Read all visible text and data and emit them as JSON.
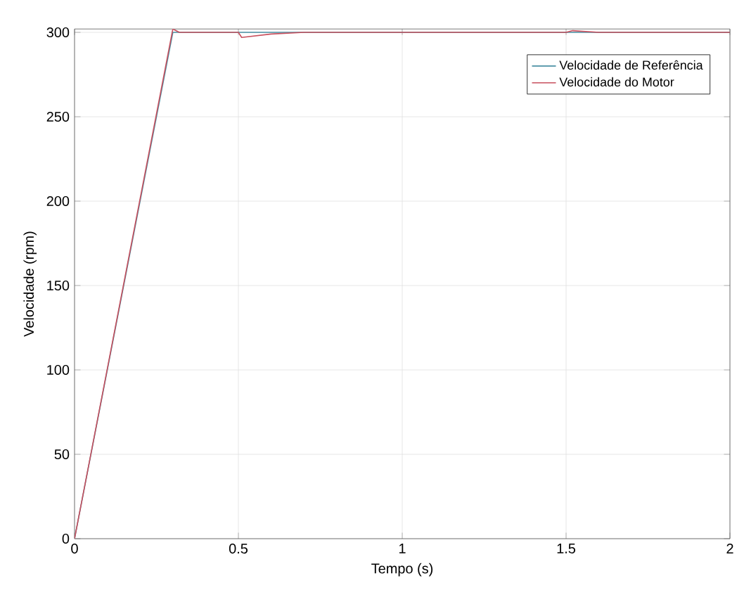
{
  "chart_data": {
    "type": "line",
    "xlabel": "Tempo (s)",
    "ylabel": "Velocidade (rpm)",
    "xlim": [
      0,
      2
    ],
    "ylim": [
      0,
      302
    ],
    "xticks": [
      0,
      0.5,
      1,
      1.5,
      2
    ],
    "yticks": [
      0,
      50,
      100,
      150,
      200,
      250,
      300
    ],
    "grid": true,
    "legend": "top right",
    "series": [
      {
        "name": "Velocidade de Referência",
        "color": "#4a90a4",
        "x": [
          0,
          0.3,
          2
        ],
        "values": [
          0,
          300,
          300
        ]
      },
      {
        "name": "Velocidade do Motor",
        "color": "#c8505e",
        "x": [
          0,
          0.3,
          0.32,
          0.5,
          0.51,
          0.6,
          0.7,
          1.5,
          1.52,
          1.6,
          2
        ],
        "values": [
          0,
          302,
          300,
          300,
          297,
          299,
          300,
          300,
          301,
          300,
          300
        ]
      }
    ]
  }
}
